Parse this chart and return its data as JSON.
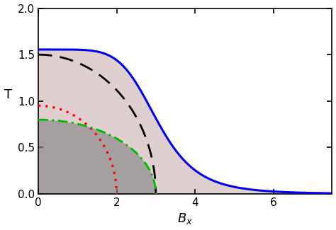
{
  "title": "",
  "xlabel": "$B_x$",
  "ylabel": "T",
  "xlim": [
    0,
    7.5
  ],
  "ylim": [
    0,
    2.0
  ],
  "xticks": [
    0,
    2,
    4,
    6
  ],
  "yticks": [
    0.0,
    0.5,
    1.0,
    1.5,
    2.0
  ],
  "blue_T0": 1.555,
  "blue_Bc": 3.05,
  "blue_sharpness": 6.0,
  "blue_color": "#0000EE",
  "black_T0": 1.5,
  "black_Bc": 3.0,
  "black_color": "#000000",
  "red_T0": 0.95,
  "red_Bc": 2.0,
  "red_color": "#FF0000",
  "green_T0": 0.8,
  "green_Bc": 3.0,
  "green_color": "#00BB00",
  "fill_blue_color": "#C8A8A8",
  "fill_green_color": "#808080",
  "fill_blue_alpha": 0.55,
  "fill_green_alpha": 0.6
}
